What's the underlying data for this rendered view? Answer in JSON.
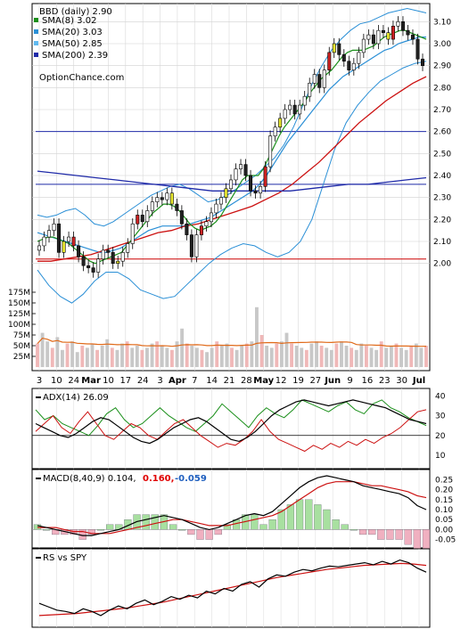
{
  "chart_data": {
    "type": "candlestick",
    "ticker_label": "BBD (daily) 2.90",
    "watermark": "OptionChance.com",
    "legend": [
      {
        "label": "SMA(8) 3.02",
        "color": "#1a8f1a"
      },
      {
        "label": "SMA(20) 3.03",
        "color": "#2a8fd6"
      },
      {
        "label": "SMA(50) 2.85",
        "color": "#5fb8ef"
      },
      {
        "label": "SMA(200) 2.39",
        "color": "#1f2aa8"
      }
    ],
    "x_ticks": [
      "3",
      "10",
      "24",
      "Mar",
      "10",
      "17",
      "24",
      "3",
      "Apr",
      "7",
      "14",
      "21",
      "28",
      "May",
      "12",
      "19",
      "27",
      "Jun",
      "9",
      "16",
      "23",
      "30",
      "Jul"
    ],
    "price_axis": {
      "min": 1.8,
      "max": 3.15,
      "ticks": [
        "3.10",
        "3.00",
        "2.90",
        "2.80",
        "2.70",
        "2.60",
        "2.50",
        "2.40",
        "2.30",
        "2.20",
        "2.10",
        "2.00"
      ]
    },
    "volume_axis": {
      "ticks": [
        "175M",
        "150M",
        "125M",
        "100M",
        "75M",
        "50M",
        "25M"
      ]
    },
    "last_price": 2.9,
    "price_series": [
      2.08,
      2.12,
      2.15,
      2.18,
      2.05,
      2.1,
      2.12,
      2.08,
      2.03,
      1.99,
      1.98,
      1.96,
      2.02,
      2.06,
      2.05,
      2.0,
      2.01,
      2.05,
      2.09,
      2.18,
      2.22,
      2.19,
      2.24,
      2.28,
      2.3,
      2.29,
      2.32,
      2.27,
      2.24,
      2.18,
      2.13,
      2.03,
      2.13,
      2.17,
      2.19,
      2.23,
      2.27,
      2.3,
      2.34,
      2.38,
      2.43,
      2.45,
      2.4,
      2.33,
      2.32,
      2.35,
      2.44,
      2.58,
      2.62,
      2.66,
      2.7,
      2.72,
      2.68,
      2.72,
      2.76,
      2.82,
      2.86,
      2.8,
      2.88,
      2.96,
      3.0,
      2.95,
      2.92,
      2.88,
      2.91,
      2.96,
      3.02,
      3.04,
      3.0,
      3.06,
      3.05,
      3.02,
      3.08,
      3.1,
      3.06,
      3.04,
      3.02,
      2.93,
      2.9
    ],
    "sma8": [
      2.1,
      2.11,
      2.12,
      2.12,
      2.11,
      2.1,
      2.09,
      2.07,
      2.05,
      2.03,
      2.01,
      2.0,
      2.01,
      2.02,
      2.03,
      2.04,
      2.05,
      2.08,
      2.11,
      2.14,
      2.17,
      2.2,
      2.23,
      2.25,
      2.27,
      2.27,
      2.26,
      2.24,
      2.21,
      2.18,
      2.16,
      2.15,
      2.16,
      2.17,
      2.19,
      2.22,
      2.26,
      2.3,
      2.34,
      2.38,
      2.4,
      2.4,
      2.4,
      2.43,
      2.48,
      2.53,
      2.58,
      2.62,
      2.65,
      2.68,
      2.71,
      2.74,
      2.78,
      2.81,
      2.84,
      2.86,
      2.88,
      2.91,
      2.94,
      2.96,
      2.97,
      2.97,
      2.97,
      2.98,
      2.99,
      3.01,
      3.03,
      3.04,
      3.05,
      3.06,
      3.06,
      3.05,
      3.04,
      3.03,
      3.02
    ],
    "sma20": [
      2.14,
      2.13,
      2.12,
      2.11,
      2.1,
      2.09,
      2.08,
      2.07,
      2.06,
      2.05,
      2.05,
      2.06,
      2.07,
      2.09,
      2.11,
      2.13,
      2.15,
      2.16,
      2.17,
      2.17,
      2.17,
      2.17,
      2.18,
      2.19,
      2.2,
      2.21,
      2.23,
      2.25,
      2.27,
      2.29,
      2.31,
      2.33,
      2.36,
      2.4,
      2.45,
      2.5,
      2.55,
      2.59,
      2.63,
      2.67,
      2.71,
      2.75,
      2.79,
      2.82,
      2.85,
      2.87,
      2.89,
      2.91,
      2.93,
      2.95,
      2.97,
      2.98,
      3.0,
      3.01,
      3.02,
      3.03,
      3.03
    ],
    "bb_upper": [
      2.22,
      2.21,
      2.22,
      2.24,
      2.25,
      2.22,
      2.18,
      2.17,
      2.19,
      2.22,
      2.25,
      2.28,
      2.31,
      2.33,
      2.35,
      2.36,
      2.34,
      2.31,
      2.28,
      2.29,
      2.31,
      2.34,
      2.37,
      2.4,
      2.44,
      2.48,
      2.54,
      2.62,
      2.72,
      2.82,
      2.9,
      2.97,
      3.02,
      3.06,
      3.09,
      3.1,
      3.12,
      3.14,
      3.15,
      3.16,
      3.15,
      3.14
    ],
    "bb_lower": [
      1.97,
      1.9,
      1.85,
      1.82,
      1.86,
      1.92,
      1.96,
      1.96,
      1.93,
      1.88,
      1.86,
      1.84,
      1.85,
      1.9,
      1.95,
      2.0,
      2.04,
      2.07,
      2.09,
      2.08,
      2.05,
      2.03,
      2.05,
      2.1,
      2.2,
      2.36,
      2.52,
      2.64,
      2.72,
      2.78,
      2.83,
      2.86,
      2.89,
      2.91,
      2.92
    ],
    "sma50": [
      2.01,
      2.01,
      2.02,
      2.03,
      2.04,
      2.06,
      2.08,
      2.1,
      2.12,
      2.14,
      2.15,
      2.17,
      2.18,
      2.2,
      2.22,
      2.24,
      2.26,
      2.29,
      2.32,
      2.36,
      2.41,
      2.46,
      2.52,
      2.58,
      2.64,
      2.69,
      2.74,
      2.78,
      2.82,
      2.85
    ],
    "sma200": [
      2.42,
      2.41,
      2.4,
      2.39,
      2.38,
      2.37,
      2.36,
      2.35,
      2.34,
      2.33,
      2.33,
      2.33,
      2.33,
      2.33,
      2.34,
      2.35,
      2.36,
      2.36,
      2.37,
      2.38,
      2.39
    ],
    "hlines": [
      {
        "value": 2.6,
        "color": "#1f2aa8"
      },
      {
        "value": 2.36,
        "color": "#1f2aa8"
      },
      {
        "value": 2.02,
        "color": "#cc0000"
      }
    ],
    "volume": [
      55,
      80,
      60,
      45,
      70,
      40,
      55,
      60,
      35,
      50,
      45,
      55,
      40,
      50,
      65,
      45,
      40,
      55,
      60,
      45,
      50,
      40,
      45,
      55,
      60,
      50,
      45,
      40,
      60,
      90,
      55,
      50,
      45,
      40,
      35,
      45,
      60,
      50,
      55,
      45,
      40,
      50,
      55,
      60,
      140,
      75,
      50,
      45,
      55,
      60,
      80,
      55,
      50,
      45,
      40,
      55,
      60,
      50,
      45,
      40,
      55,
      60,
      50,
      45,
      40,
      55,
      50,
      45,
      40,
      60,
      45,
      50,
      55,
      45,
      40,
      50,
      55,
      45,
      50
    ],
    "adx": {
      "label": "ADX(14) 26.09",
      "ticks": [
        "40",
        "30",
        "20",
        "10"
      ],
      "adx": [
        26,
        24,
        22,
        20,
        19,
        21,
        24,
        27,
        29,
        28,
        25,
        22,
        19,
        17,
        16,
        18,
        21,
        24,
        26,
        28,
        29,
        27,
        24,
        21,
        18,
        17,
        19,
        22,
        26,
        30,
        33,
        35,
        37,
        38,
        37,
        36,
        35,
        36,
        37,
        38,
        37,
        36,
        35,
        34,
        32,
        30,
        28,
        27,
        26
      ],
      "plus_di": [
        33,
        28,
        30,
        26,
        24,
        22,
        20,
        25,
        31,
        34,
        28,
        24,
        26,
        30,
        34,
        30,
        27,
        24,
        22,
        26,
        30,
        36,
        32,
        28,
        24,
        30,
        34,
        31,
        29,
        33,
        38,
        36,
        34,
        32,
        35,
        37,
        33,
        31,
        36,
        38,
        34,
        32,
        29,
        27,
        25
      ],
      "minus_di": [
        22,
        26,
        30,
        24,
        21,
        27,
        32,
        26,
        20,
        18,
        22,
        26,
        24,
        20,
        18,
        22,
        26,
        28,
        24,
        20,
        17,
        14,
        16,
        15,
        18,
        22,
        28,
        22,
        18,
        16,
        14,
        12,
        15,
        13,
        16,
        14,
        17,
        15,
        18,
        16,
        19,
        21,
        24,
        28,
        32,
        33
      ]
    },
    "macd": {
      "label": "MACD(8,40,9) 0.104,",
      "macd_value": "0.160,",
      "signal_value": "-0.059",
      "ticks": [
        "0.25",
        "0.20",
        "0.15",
        "0.10",
        "0.05",
        "0.00",
        "-0.05"
      ],
      "macd": [
        0.02,
        0.01,
        0.0,
        -0.01,
        -0.02,
        -0.03,
        -0.03,
        -0.02,
        -0.01,
        0.0,
        0.02,
        0.04,
        0.05,
        0.06,
        0.07,
        0.06,
        0.05,
        0.03,
        0.01,
        0.0,
        0.01,
        0.03,
        0.05,
        0.07,
        0.08,
        0.07,
        0.09,
        0.13,
        0.17,
        0.21,
        0.24,
        0.26,
        0.27,
        0.26,
        0.25,
        0.24,
        0.22,
        0.21,
        0.2,
        0.19,
        0.18,
        0.16,
        0.12,
        0.1
      ],
      "signal": [
        0.01,
        0.01,
        0.01,
        0.0,
        -0.01,
        -0.01,
        -0.02,
        -0.02,
        -0.02,
        -0.01,
        0.0,
        0.01,
        0.02,
        0.03,
        0.04,
        0.05,
        0.05,
        0.04,
        0.03,
        0.02,
        0.02,
        0.02,
        0.03,
        0.04,
        0.05,
        0.06,
        0.07,
        0.09,
        0.12,
        0.15,
        0.18,
        0.21,
        0.23,
        0.24,
        0.24,
        0.24,
        0.23,
        0.22,
        0.22,
        0.21,
        0.2,
        0.19,
        0.17,
        0.16
      ]
    },
    "rs": {
      "label": "RS vs SPY",
      "rs": [
        0.3,
        0.25,
        0.2,
        0.18,
        0.15,
        0.22,
        0.18,
        0.12,
        0.2,
        0.26,
        0.22,
        0.3,
        0.35,
        0.28,
        0.33,
        0.4,
        0.36,
        0.42,
        0.38,
        0.48,
        0.44,
        0.52,
        0.48,
        0.58,
        0.62,
        0.54,
        0.66,
        0.72,
        0.7,
        0.76,
        0.8,
        0.78,
        0.82,
        0.85,
        0.84,
        0.86,
        0.88,
        0.9,
        0.87,
        0.92,
        0.88,
        0.94,
        0.9,
        0.82,
        0.76
      ],
      "rs_ma": [
        0.12,
        0.13,
        0.14,
        0.15,
        0.17,
        0.19,
        0.21,
        0.23,
        0.26,
        0.29,
        0.32,
        0.36,
        0.4,
        0.44,
        0.48,
        0.52,
        0.56,
        0.6,
        0.64,
        0.68,
        0.71,
        0.74,
        0.77,
        0.8,
        0.82,
        0.84,
        0.86,
        0.87,
        0.88,
        0.89,
        0.88,
        0.86
      ]
    }
  }
}
